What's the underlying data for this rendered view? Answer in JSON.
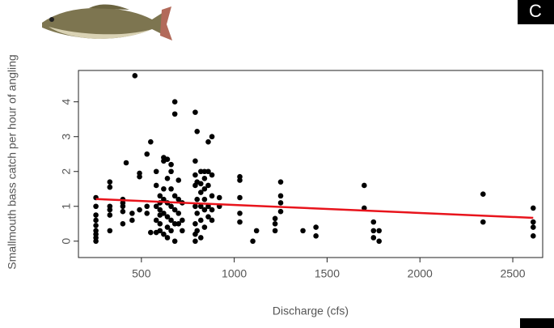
{
  "corner_label": "C",
  "chart_data": {
    "type": "scatter",
    "x_label": "Discharge (cfs)",
    "y_label": "Smallmouth bass catch per hour of angling",
    "xlim": [
      161,
      2661
    ],
    "ylim": [
      -0.47,
      4.9
    ],
    "xticks": [
      500,
      1000,
      1500,
      2000,
      2500
    ],
    "yticks": [
      0,
      1,
      2,
      3,
      4
    ],
    "point_color": "#000000",
    "x": [
      255,
      255,
      255,
      255,
      255,
      255,
      255,
      255,
      255,
      330,
      330,
      330,
      330,
      330,
      330,
      400,
      400,
      400,
      400,
      400,
      418,
      450,
      450,
      465,
      490,
      490,
      490,
      530,
      530,
      530,
      550,
      550,
      580,
      580,
      580,
      580,
      580,
      600,
      600,
      600,
      600,
      600,
      600,
      620,
      620,
      620,
      620,
      620,
      620,
      640,
      640,
      640,
      640,
      640,
      640,
      660,
      660,
      660,
      660,
      660,
      660,
      680,
      680,
      680,
      680,
      680,
      680,
      700,
      700,
      700,
      700,
      720,
      720,
      720,
      790,
      790,
      790,
      790,
      790,
      790,
      790,
      790,
      800,
      800,
      800,
      800,
      800,
      820,
      820,
      820,
      820,
      820,
      820,
      840,
      840,
      840,
      840,
      840,
      840,
      860,
      860,
      860,
      860,
      860,
      880,
      880,
      880,
      880,
      880,
      920,
      920,
      1030,
      1030,
      1030,
      1030,
      1030,
      1100,
      1120,
      1220,
      1220,
      1220,
      1250,
      1250,
      1250,
      1250,
      1370,
      1440,
      1440,
      1700,
      1700,
      1750,
      1750,
      1750,
      1780,
      1780,
      2340,
      2340,
      2610,
      2610,
      2610,
      2610
    ],
    "values": [
      1.25,
      1.0,
      0.75,
      0.6,
      0.45,
      0.3,
      0.1,
      0.0,
      0.2,
      1.7,
      1.55,
      1.0,
      0.9,
      0.75,
      0.3,
      1.2,
      1.1,
      1.0,
      0.85,
      0.5,
      2.25,
      0.6,
      0.8,
      4.75,
      1.95,
      1.85,
      0.9,
      2.5,
      1.0,
      0.8,
      2.85,
      0.25,
      2.0,
      1.6,
      1.0,
      0.6,
      0.25,
      1.1,
      1.3,
      0.9,
      0.75,
      0.5,
      0.3,
      2.4,
      2.3,
      1.5,
      1.2,
      0.8,
      0.2,
      2.35,
      1.8,
      1.1,
      0.7,
      0.4,
      0.1,
      2.2,
      2.0,
      1.5,
      1.0,
      0.6,
      0.3,
      4.0,
      3.65,
      1.3,
      0.9,
      0.5,
      0.0,
      1.75,
      1.2,
      0.8,
      0.5,
      1.1,
      0.6,
      0.3,
      3.7,
      2.3,
      1.9,
      1.6,
      1.0,
      0.5,
      0.2,
      0.0,
      3.15,
      1.7,
      1.2,
      0.8,
      0.3,
      2.0,
      1.65,
      1.4,
      1.0,
      0.6,
      0.1,
      2.0,
      1.8,
      1.5,
      1.2,
      0.9,
      0.4,
      2.85,
      2.0,
      1.6,
      1.0,
      0.7,
      3.0,
      1.9,
      1.3,
      0.9,
      0.6,
      1.25,
      1.0,
      1.85,
      1.75,
      1.25,
      0.8,
      0.55,
      0.0,
      0.3,
      0.65,
      0.5,
      0.3,
      1.7,
      1.3,
      1.1,
      0.85,
      0.3,
      0.4,
      0.15,
      1.6,
      0.95,
      0.55,
      0.3,
      0.1,
      0.3,
      0.0,
      1.35,
      0.55,
      0.95,
      0.55,
      0.4,
      0.15
    ],
    "trend": {
      "x": [
        255,
        2610
      ],
      "values": [
        1.21,
        0.67
      ],
      "color": "#e8141c"
    }
  }
}
